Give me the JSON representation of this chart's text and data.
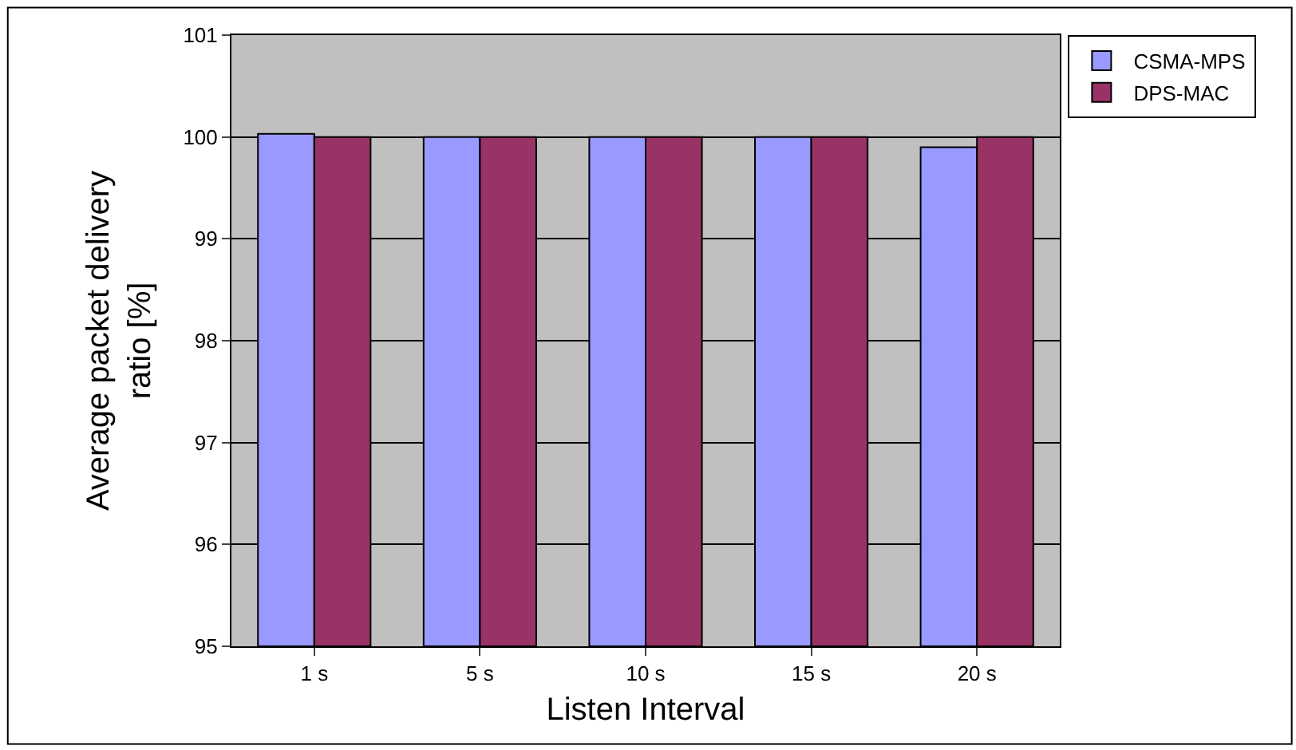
{
  "chart_data": {
    "type": "bar",
    "xlabel": "Listen Interval",
    "ylabel": "Average packet delivery ratio [%]",
    "categories": [
      "1 s",
      "5 s",
      "10 s",
      "15 s",
      "20 s"
    ],
    "series": [
      {
        "name": "CSMA-MPS",
        "color": "#9999ff",
        "values": [
          100.03,
          100,
          100,
          100,
          99.9
        ]
      },
      {
        "name": "DPS-MAC",
        "color": "#993366",
        "values": [
          100,
          100,
          100,
          100,
          100
        ]
      }
    ],
    "ylim": [
      95,
      101
    ],
    "yticks": [
      95,
      96,
      97,
      98,
      99,
      100,
      101
    ],
    "grid": "y",
    "legend": "top right"
  }
}
